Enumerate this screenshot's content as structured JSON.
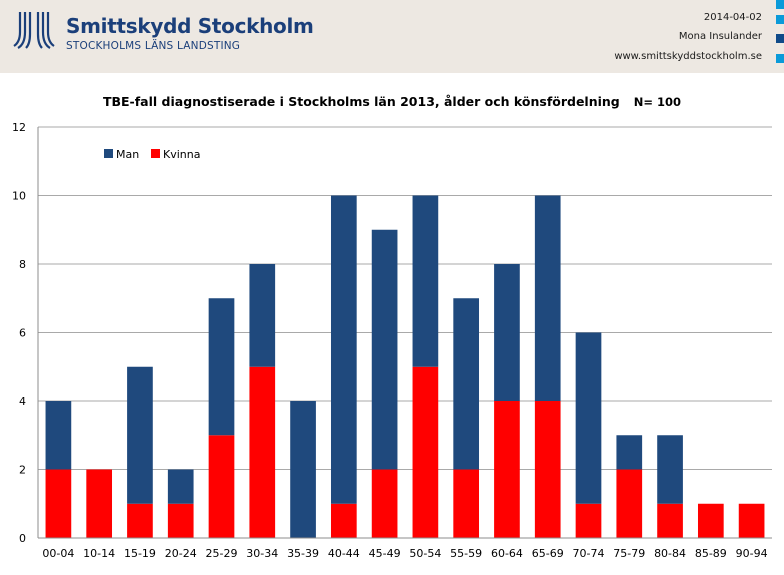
{
  "header": {
    "org_name": "Smittskydd Stockholm",
    "org_sub": "STOCKHOLMS LÄNS LANDSTING",
    "date": "2014-04-02",
    "author": "Mona Insulander",
    "website": "www.smittskyddstockholm.se"
  },
  "colors": {
    "man": "#1f497d",
    "kvinna": "#ff0000",
    "brand": "#1b3f7a",
    "accent": "#0a9ad9"
  },
  "chart_data": {
    "type": "bar",
    "stacked": true,
    "title": "TBE-fall diagnostiserade i Stockholms län 2013, ålder och könsfördelning",
    "annotation": "N= 100",
    "xlabel": "",
    "ylabel": "",
    "ylim": [
      0,
      12
    ],
    "yticks": [
      0,
      2,
      4,
      6,
      8,
      10,
      12
    ],
    "grid": true,
    "legend_position": "top-left",
    "categories": [
      "00-04",
      "10-14",
      "15-19",
      "20-24",
      "25-29",
      "30-34",
      "35-39",
      "40-44",
      "45-49",
      "50-54",
      "55-59",
      "60-64",
      "65-69",
      "70-74",
      "75-79",
      "80-84",
      "85-89",
      "90-94"
    ],
    "series": [
      {
        "name": "Kvinna",
        "values": [
          2,
          2,
          1,
          1,
          3,
          5,
          0,
          1,
          2,
          5,
          2,
          4,
          4,
          1,
          2,
          1,
          1,
          1
        ]
      },
      {
        "name": "Man",
        "values": [
          2,
          0,
          4,
          1,
          4,
          3,
          4,
          9,
          7,
          5,
          5,
          4,
          6,
          5,
          1,
          2,
          0,
          0
        ]
      }
    ]
  }
}
